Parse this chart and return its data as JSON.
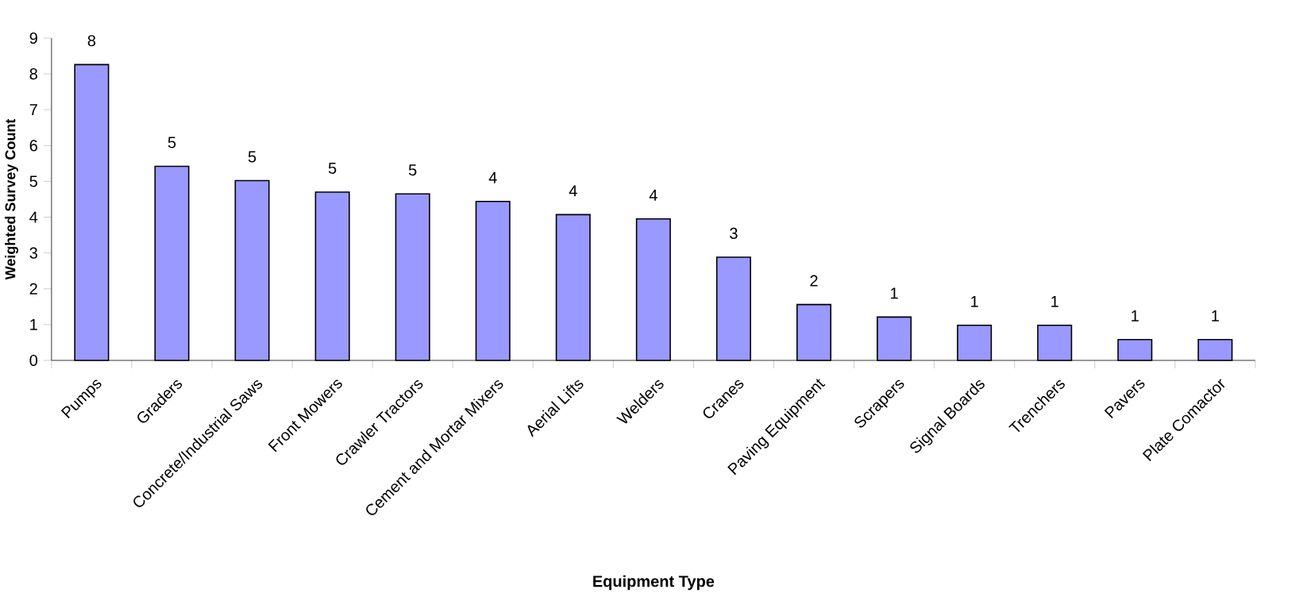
{
  "chart_data": {
    "type": "bar",
    "xlabel": "Equipment Type",
    "ylabel": "Weighted Survey Count",
    "categories": [
      "Pumps",
      "Graders",
      "Concrete/Industrial Saws",
      "Front Mowers",
      "Crawler Tractors",
      "Cement and Mortar Mixers",
      "Aerial Lifts",
      "Welders",
      "Cranes",
      "Paving Equipment",
      "Scrapers",
      "Signal Boards",
      "Trenchers",
      "Pavers",
      "Plate Comactor"
    ],
    "values": [
      8.26,
      5.42,
      5.02,
      4.7,
      4.65,
      4.44,
      4.07,
      3.95,
      2.88,
      1.56,
      1.21,
      0.98,
      0.98,
      0.58,
      0.58
    ],
    "value_labels": [
      "8",
      "5",
      "5",
      "5",
      "5",
      "4",
      "4",
      "4",
      "3",
      "2",
      "1",
      "1",
      "1",
      "1",
      "1"
    ],
    "color": "#9999ff",
    "ylim": [
      0,
      9
    ],
    "yticks": [
      0,
      1,
      2,
      3,
      4,
      5,
      6,
      7,
      8,
      9
    ]
  }
}
